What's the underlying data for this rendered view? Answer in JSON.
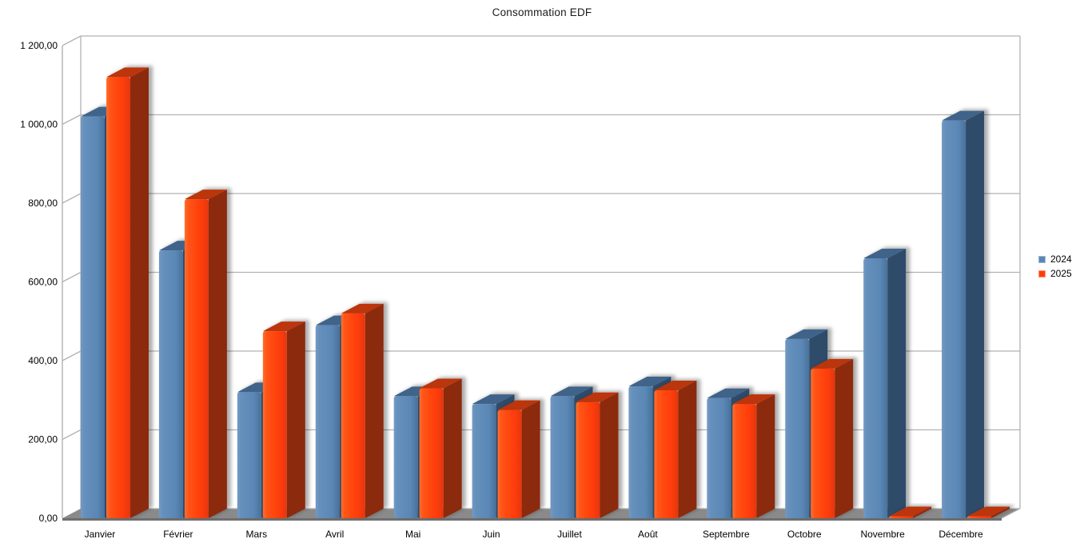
{
  "title": "Consommation EDF",
  "legend": {
    "items": [
      {
        "label": "2024",
        "color": "#5a87b5",
        "border": "#9db8d2"
      },
      {
        "label": "2025",
        "color": "#ff3d0c",
        "border": "#ff9a74"
      }
    ]
  },
  "chart_data": {
    "type": "bar",
    "projection": "3d",
    "title": "Consommation EDF",
    "categories": [
      "Janvier",
      "Février",
      "Mars",
      "Avril",
      "Mai",
      "Juin",
      "Juillet",
      "Août",
      "Septembre",
      "Octobre",
      "Novembre",
      "Décembre"
    ],
    "series": [
      {
        "name": "2024",
        "color": "#5a87b5",
        "values": [
          1020,
          680,
          320,
          490,
          310,
          290,
          310,
          335,
          305,
          455,
          660,
          1010
        ]
      },
      {
        "name": "2025",
        "color": "#ff3d0c",
        "values": [
          1120,
          810,
          475,
          520,
          330,
          275,
          295,
          325,
          290,
          380,
          0,
          0
        ]
      }
    ],
    "xlabel": "",
    "ylabel": "",
    "ylim": [
      0,
      1200
    ],
    "ytick_step": 200,
    "ytick_labels": [
      "0,00",
      "200,00",
      "400,00",
      "600,00",
      "800,00",
      "1 000,00",
      "1 200,00"
    ],
    "grid": true,
    "legend_position": "right"
  },
  "colors": {
    "background": "#ffffff",
    "wall_edge": "#b2b2b2",
    "gridline": "#b2b2b2",
    "floor_top": "#8a8a8a",
    "floor_front": "#6f6f6f",
    "axis_text": "#000000",
    "title_text": "#1a1a1a",
    "series1_front": [
      "#7399c2",
      "#6690bc",
      "#5a87b5",
      "#49719b"
    ],
    "series1_side": "#2e4c6b",
    "series1_top": "#41648a",
    "series2_front": [
      "#ff7030",
      "#ff5517",
      "#ff3c08",
      "#e2380a"
    ],
    "series2_side": "#8c2a0e",
    "series2_top": "#bb3407"
  }
}
